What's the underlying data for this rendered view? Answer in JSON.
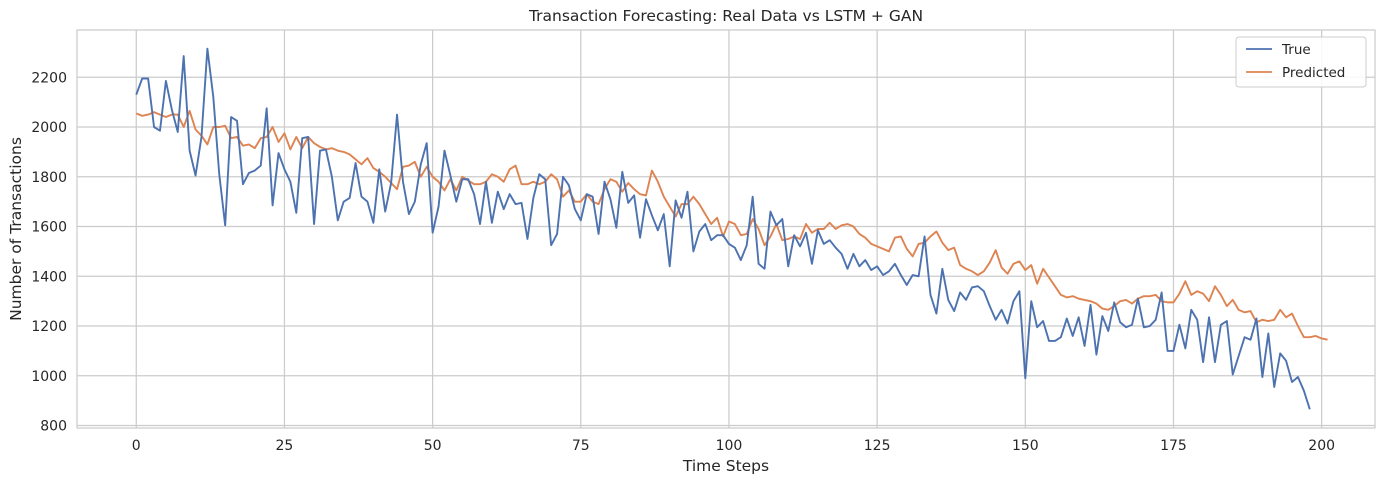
{
  "chart_data": {
    "type": "line",
    "title": "Transaction Forecasting: Real Data vs LSTM + GAN",
    "xlabel": "Time Steps",
    "ylabel": "Number of Transactions",
    "xlim": [
      -10,
      209
    ],
    "ylim": [
      790,
      2390
    ],
    "xticks": [
      0,
      25,
      50,
      75,
      100,
      125,
      150,
      175,
      200
    ],
    "yticks": [
      800,
      1000,
      1200,
      1400,
      1600,
      1800,
      2000,
      2200
    ],
    "grid": true,
    "legend_position": "top-right",
    "series": [
      {
        "name": "True",
        "color": "#4c72b0",
        "x_start": 0,
        "values": [
          2130,
          2195,
          2195,
          2000,
          1985,
          2185,
          2070,
          1980,
          2285,
          1905,
          1805,
          1960,
          2315,
          2120,
          1810,
          1605,
          2040,
          2025,
          1770,
          1815,
          1825,
          1845,
          2075,
          1685,
          1895,
          1830,
          1780,
          1655,
          1955,
          1960,
          1610,
          1905,
          1910,
          1800,
          1625,
          1700,
          1715,
          1855,
          1720,
          1700,
          1615,
          1830,
          1660,
          1775,
          2050,
          1780,
          1650,
          1700,
          1850,
          1935,
          1575,
          1680,
          1905,
          1805,
          1700,
          1790,
          1790,
          1730,
          1610,
          1780,
          1615,
          1740,
          1670,
          1730,
          1690,
          1695,
          1550,
          1715,
          1810,
          1790,
          1525,
          1570,
          1800,
          1765,
          1670,
          1625,
          1730,
          1720,
          1570,
          1780,
          1710,
          1595,
          1820,
          1695,
          1725,
          1555,
          1710,
          1645,
          1585,
          1650,
          1440,
          1705,
          1635,
          1740,
          1500,
          1580,
          1610,
          1545,
          1565,
          1565,
          1530,
          1515,
          1465,
          1525,
          1720,
          1450,
          1430,
          1660,
          1605,
          1630,
          1440,
          1565,
          1520,
          1575,
          1450,
          1585,
          1530,
          1545,
          1515,
          1490,
          1430,
          1490,
          1440,
          1465,
          1425,
          1440,
          1405,
          1420,
          1450,
          1405,
          1365,
          1405,
          1400,
          1560,
          1325,
          1250,
          1430,
          1305,
          1260,
          1335,
          1305,
          1355,
          1360,
          1340,
          1280,
          1225,
          1265,
          1210,
          1300,
          1340,
          990,
          1300,
          1195,
          1220,
          1140,
          1140,
          1155,
          1230,
          1160,
          1235,
          1120,
          1285,
          1085,
          1240,
          1180,
          1295,
          1215,
          1195,
          1205,
          1310,
          1195,
          1200,
          1225,
          1335,
          1100,
          1100,
          1205,
          1110,
          1265,
          1225,
          1055,
          1235,
          1055,
          1205,
          1220,
          1005,
          1080,
          1155,
          1145,
          1230,
          995,
          1170,
          955,
          1090,
          1060,
          975,
          995,
          940,
          865
        ]
      },
      {
        "name": "Predicted",
        "color": "#dd8452",
        "x_start": 0,
        "values": [
          2055,
          2045,
          2050,
          2060,
          2050,
          2040,
          2050,
          2050,
          2000,
          2065,
          1990,
          1965,
          1930,
          2000,
          2000,
          2005,
          1955,
          1960,
          1925,
          1930,
          1915,
          1955,
          1960,
          2000,
          1940,
          1975,
          1910,
          1960,
          1915,
          1960,
          1935,
          1920,
          1910,
          1915,
          1905,
          1900,
          1890,
          1870,
          1850,
          1875,
          1835,
          1820,
          1800,
          1775,
          1750,
          1840,
          1845,
          1860,
          1800,
          1840,
          1800,
          1780,
          1745,
          1790,
          1745,
          1800,
          1785,
          1770,
          1770,
          1780,
          1810,
          1800,
          1780,
          1830,
          1845,
          1770,
          1770,
          1780,
          1770,
          1780,
          1810,
          1790,
          1720,
          1745,
          1700,
          1700,
          1730,
          1700,
          1690,
          1750,
          1790,
          1780,
          1740,
          1775,
          1750,
          1730,
          1725,
          1825,
          1780,
          1720,
          1680,
          1640,
          1690,
          1690,
          1720,
          1690,
          1650,
          1610,
          1635,
          1560,
          1620,
          1610,
          1565,
          1570,
          1630,
          1590,
          1525,
          1560,
          1610,
          1545,
          1550,
          1560,
          1550,
          1610,
          1575,
          1590,
          1590,
          1615,
          1590,
          1605,
          1610,
          1600,
          1570,
          1555,
          1530,
          1520,
          1510,
          1500,
          1555,
          1560,
          1510,
          1480,
          1530,
          1535,
          1560,
          1580,
          1535,
          1505,
          1515,
          1445,
          1430,
          1420,
          1405,
          1420,
          1455,
          1505,
          1435,
          1410,
          1450,
          1460,
          1425,
          1445,
          1370,
          1430,
          1395,
          1360,
          1325,
          1315,
          1320,
          1310,
          1305,
          1300,
          1290,
          1270,
          1265,
          1280,
          1300,
          1305,
          1290,
          1310,
          1320,
          1320,
          1325,
          1300,
          1295,
          1295,
          1330,
          1380,
          1325,
          1340,
          1330,
          1300,
          1360,
          1325,
          1280,
          1305,
          1265,
          1255,
          1260,
          1215,
          1225,
          1220,
          1225,
          1265,
          1235,
          1250,
          1200,
          1155,
          1155,
          1160,
          1150,
          1145
        ]
      }
    ]
  }
}
